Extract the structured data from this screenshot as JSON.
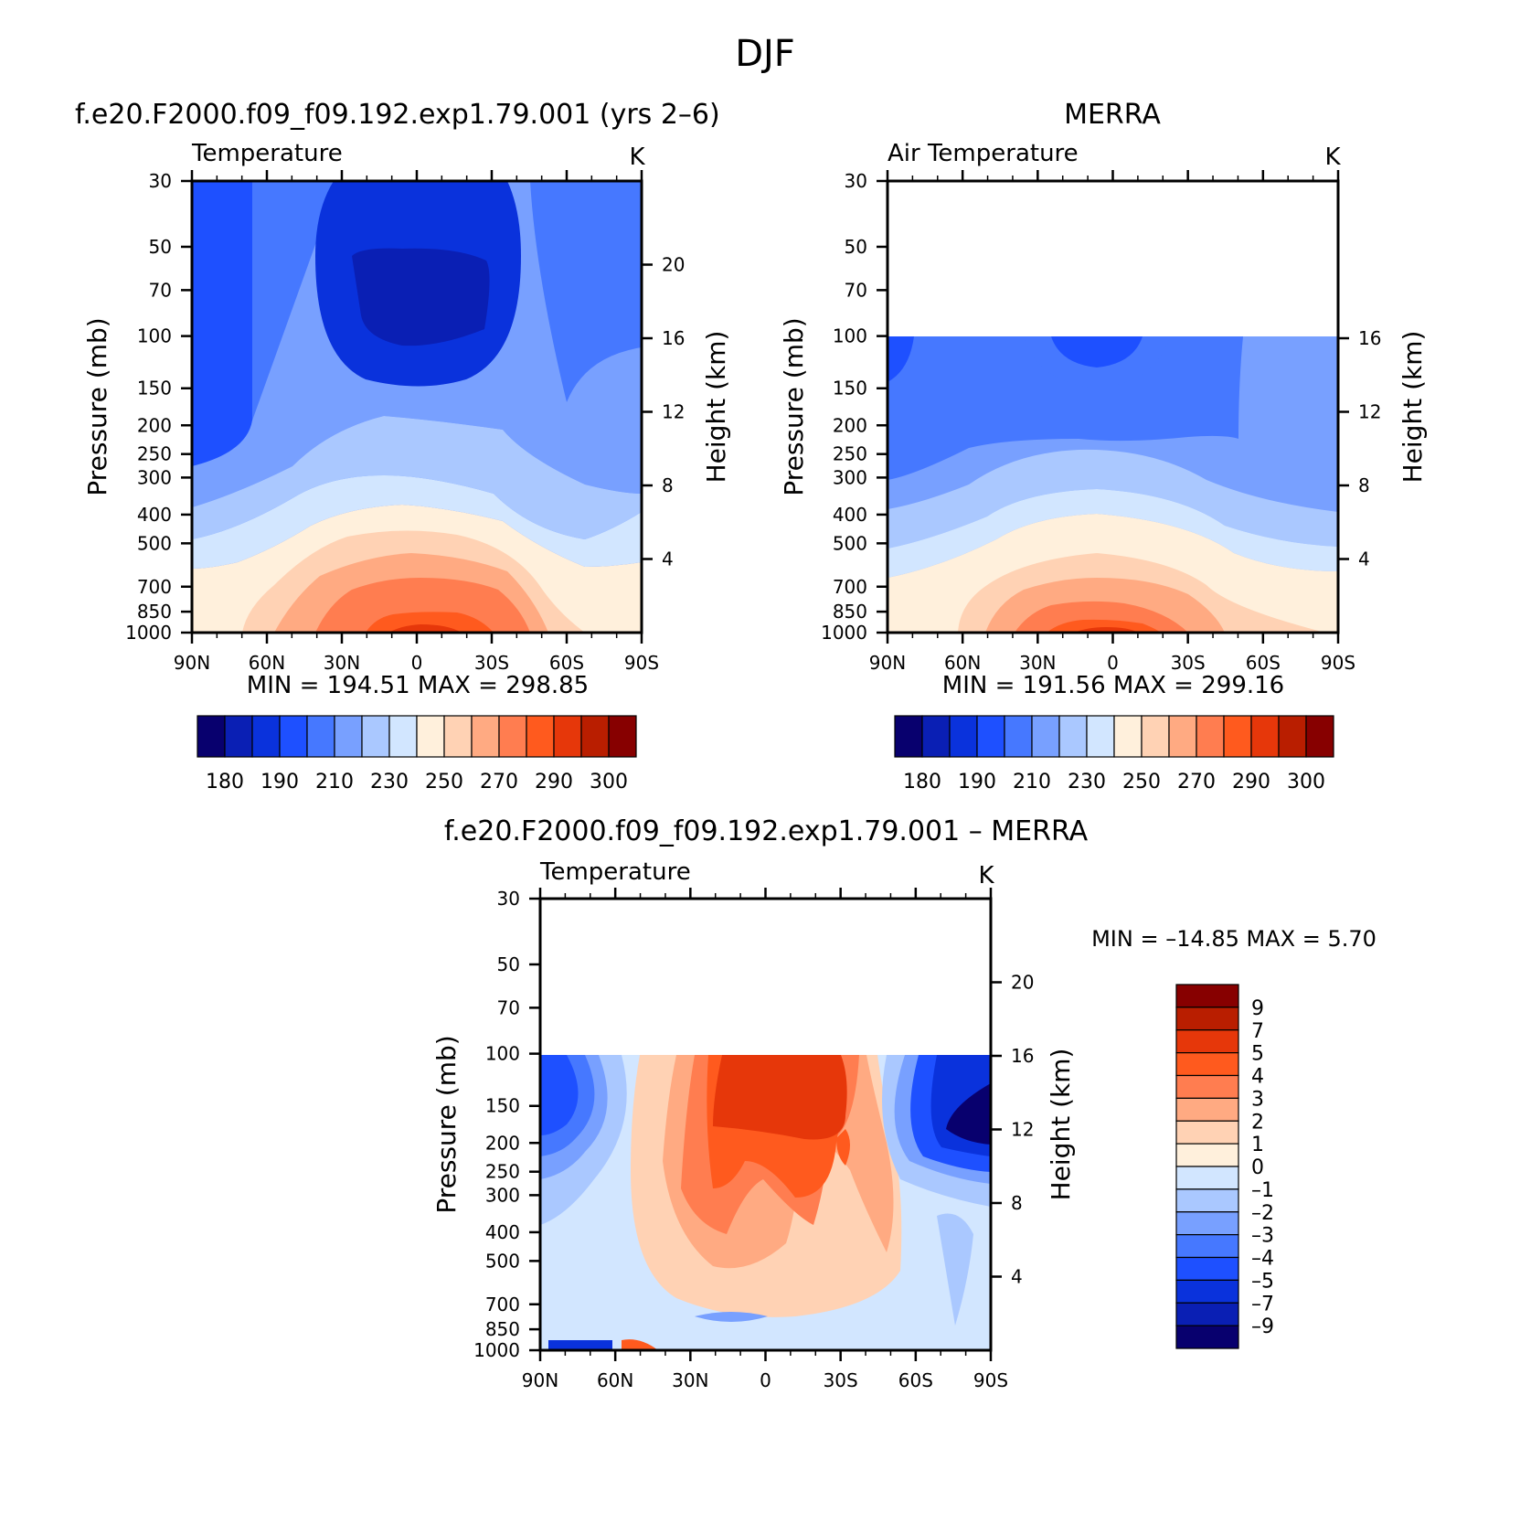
{
  "figure_title": "DJF",
  "colors": {
    "temp_fills": [
      "#08006e",
      "#0a1fb4",
      "#0a32dc",
      "#1e50ff",
      "#4678ff",
      "#78a0ff",
      "#aac8ff",
      "#d2e6ff",
      "#fff0dc",
      "#ffd2b4",
      "#ffaa82",
      "#ff7d50",
      "#ff5a1e",
      "#e6370a",
      "#b91e00",
      "#870000"
    ],
    "diff_fills": [
      "#08006e",
      "#0a1fb4",
      "#0a32dc",
      "#1e50ff",
      "#4678ff",
      "#78a0ff",
      "#aac8ff",
      "#d2e6ff",
      "#fff0dc",
      "#ffd2b4",
      "#ffaa82",
      "#ff7d50",
      "#ff5a1e",
      "#e6370a",
      "#b91e00",
      "#870000"
    ]
  },
  "chart_data": [
    {
      "type": "heatmap",
      "panel_title": "f.e20.F2000.f09_f09.192.exp1.79.001 (yrs 2–6)",
      "subtitle_left": "Temperature",
      "units": "K",
      "xlabel": "",
      "ylabel": "Pressure (mb)",
      "ylabel_right": "Height (km)",
      "x_ticks": [
        "90N",
        "60N",
        "30N",
        "0",
        "30S",
        "60S",
        "90S"
      ],
      "y_ticks": [
        "30",
        "50",
        "70",
        "100",
        "150",
        "200",
        "250",
        "300",
        "400",
        "500",
        "700",
        "850",
        "1000"
      ],
      "y_right_ticks": [
        "20",
        "16",
        "12",
        "8",
        "4"
      ],
      "ylim_mb": [
        1000,
        30
      ],
      "stats": "MIN = 194.51 MAX = 298.85",
      "colorbar_labels": [
        "180",
        "190",
        "210",
        "230",
        "250",
        "270",
        "290",
        "300"
      ],
      "data_top_mb": 30
    },
    {
      "type": "heatmap",
      "panel_title": "MERRA",
      "subtitle_left": "Air Temperature",
      "units": "K",
      "xlabel": "",
      "ylabel": "Pressure (mb)",
      "ylabel_right": "Height (km)",
      "x_ticks": [
        "90N",
        "60N",
        "30N",
        "0",
        "30S",
        "60S",
        "90S"
      ],
      "y_ticks": [
        "30",
        "50",
        "70",
        "100",
        "150",
        "200",
        "250",
        "300",
        "400",
        "500",
        "700",
        "850",
        "1000"
      ],
      "y_right_ticks": [
        "16",
        "12",
        "8",
        "4"
      ],
      "ylim_mb": [
        1000,
        30
      ],
      "stats": "MIN = 191.56 MAX = 299.16",
      "colorbar_labels": [
        "180",
        "190",
        "210",
        "230",
        "250",
        "270",
        "290",
        "300"
      ],
      "data_top_mb": 100
    },
    {
      "type": "heatmap",
      "panel_title": "f.e20.F2000.f09_f09.192.exp1.79.001 – MERRA",
      "subtitle_left": "Temperature",
      "units": "K",
      "xlabel": "",
      "ylabel": "Pressure (mb)",
      "ylabel_right": "Height (km)",
      "x_ticks": [
        "90N",
        "60N",
        "30N",
        "0",
        "30S",
        "60S",
        "90S"
      ],
      "y_ticks": [
        "30",
        "50",
        "70",
        "100",
        "150",
        "200",
        "250",
        "300",
        "400",
        "500",
        "700",
        "850",
        "1000"
      ],
      "y_right_ticks": [
        "20",
        "16",
        "12",
        "8",
        "4"
      ],
      "ylim_mb": [
        1000,
        30
      ],
      "stats": "MIN = –14.85 MAX = 5.70",
      "colorbar_labels": [
        "9",
        "7",
        "5",
        "4",
        "3",
        "2",
        "1",
        "0",
        "–1",
        "–2",
        "–3",
        "–4",
        "–5",
        "–7",
        "–9"
      ],
      "data_top_mb": 100
    }
  ]
}
